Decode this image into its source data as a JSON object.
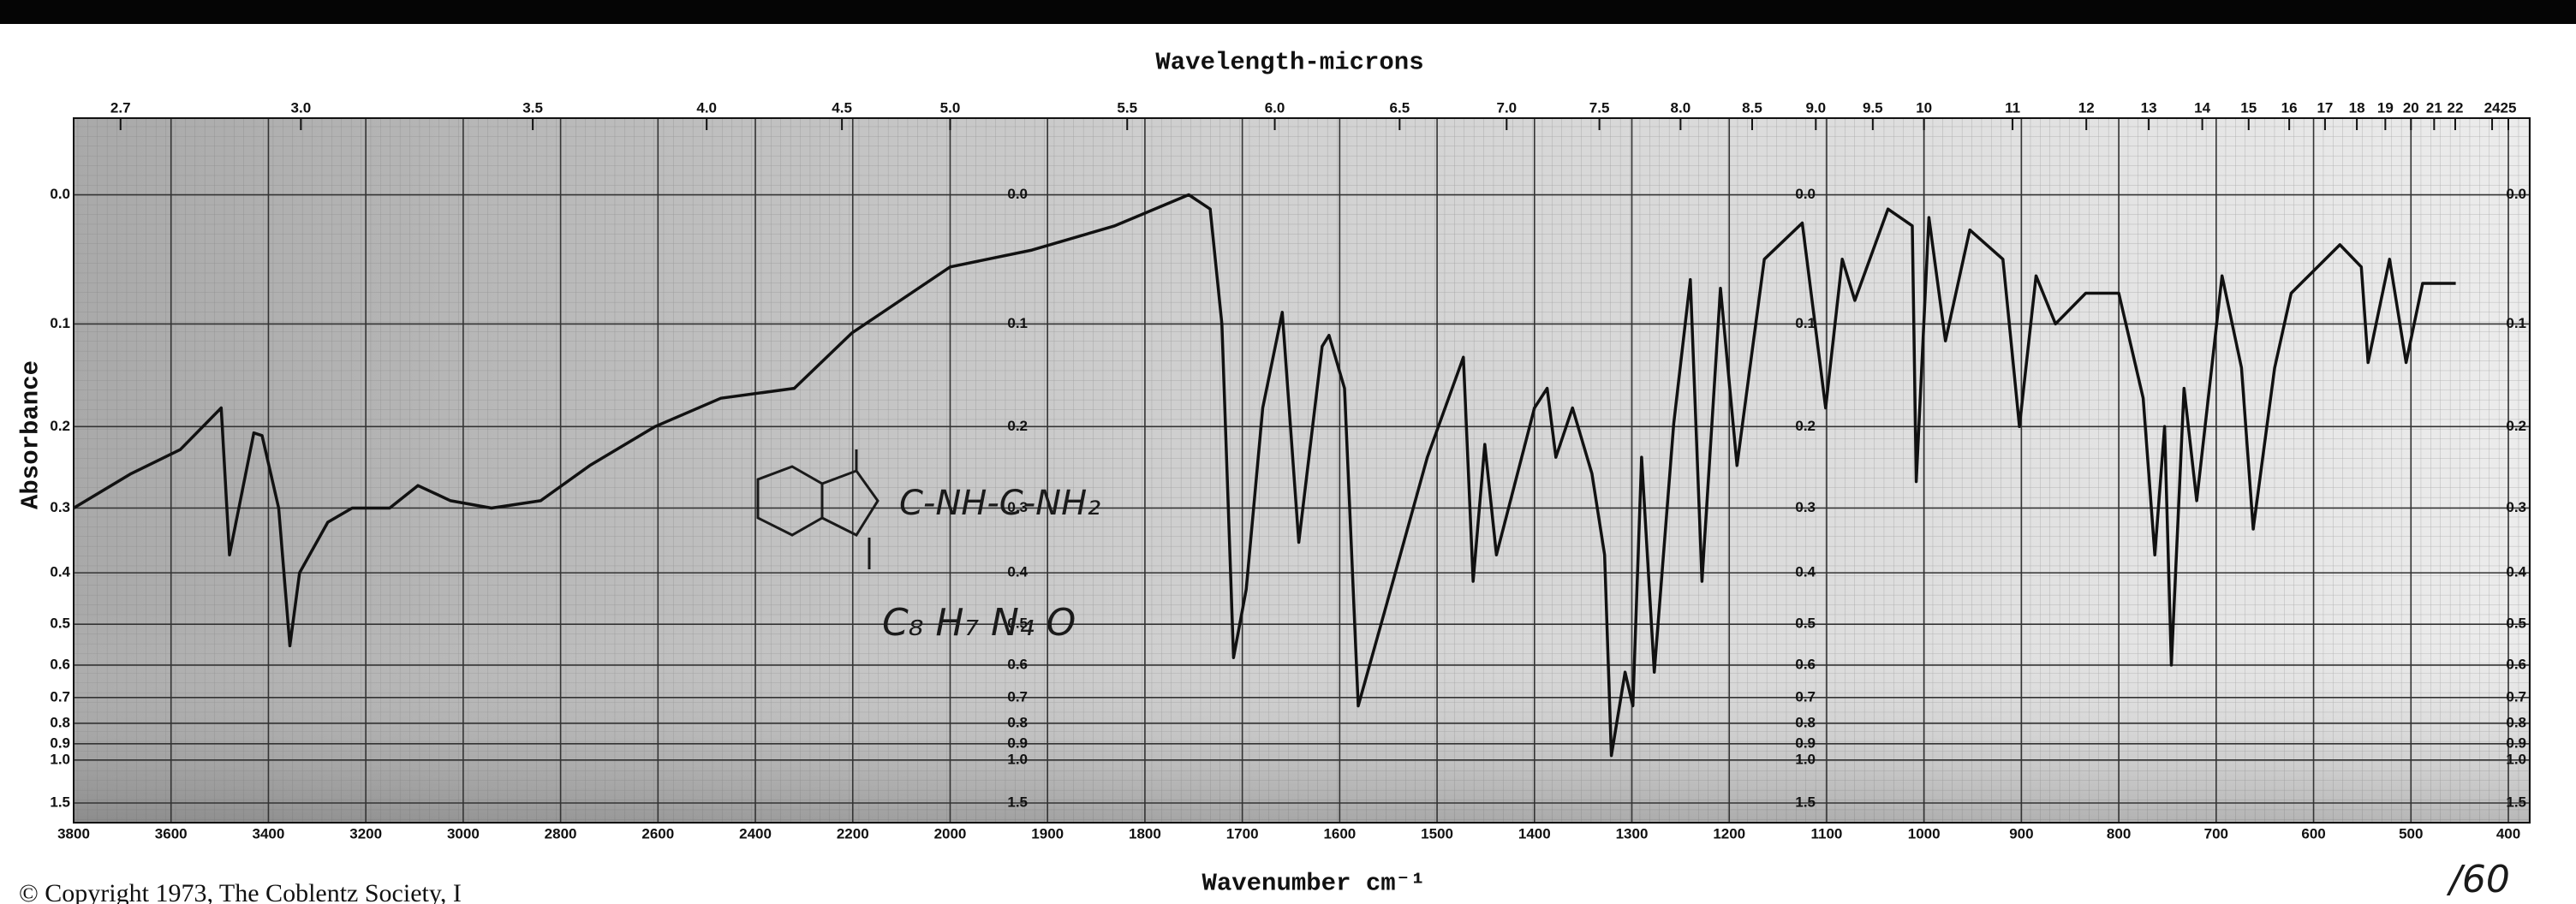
{
  "chart_data": {
    "type": "line",
    "title": "Wavelength-microns",
    "xlabel": "Wavenumber cm⁻¹",
    "ylabel": "Absorbance",
    "copyright": "© Copyright 1973, The Coblentz Society, I",
    "annotations": [
      "C-NH-C-NH₂",
      "C₈ H₇ N₄ O",
      "/60"
    ],
    "color": "#111111",
    "x": [
      3800,
      3682,
      3581,
      3497,
      3480,
      3430,
      3413,
      3379,
      3356,
      3336,
      3278,
      3228,
      3151,
      3093,
      3026,
      2942,
      2841,
      2740,
      2606,
      2471,
      2320,
      2202,
      2000,
      1916,
      1831,
      1755,
      1733,
      1721,
      1709,
      1696,
      1679,
      1659,
      1642,
      1618,
      1611,
      1595,
      1581,
      1552,
      1510,
      1473,
      1463,
      1451,
      1439,
      1400,
      1387,
      1378,
      1361,
      1341,
      1328,
      1321,
      1307,
      1299,
      1290,
      1277,
      1257,
      1240,
      1228,
      1209,
      1192,
      1164,
      1125,
      1101,
      1084,
      1071,
      1037,
      1012,
      1008,
      995,
      978,
      953,
      919,
      902,
      885,
      865,
      834,
      800,
      775,
      763,
      753,
      746,
      733,
      720,
      694,
      674,
      662,
      640,
      623,
      573,
      551,
      544,
      522,
      505,
      488,
      454
    ],
    "values": [
      0.3,
      0.255,
      0.226,
      0.18,
      0.37,
      0.207,
      0.21,
      0.3,
      0.55,
      0.4,
      0.32,
      0.3,
      0.3,
      0.27,
      0.29,
      0.3,
      0.29,
      0.245,
      0.2,
      0.17,
      0.16,
      0.108,
      0.053,
      0.04,
      0.022,
      0.0,
      0.01,
      0.1,
      0.58,
      0.43,
      0.18,
      0.09,
      0.35,
      0.12,
      0.11,
      0.16,
      0.73,
      0.46,
      0.235,
      0.13,
      0.415,
      0.22,
      0.37,
      0.18,
      0.16,
      0.235,
      0.18,
      0.255,
      0.37,
      0.97,
      0.62,
      0.73,
      0.235,
      0.62,
      0.197,
      0.063,
      0.415,
      0.07,
      0.245,
      0.047,
      0.02,
      0.18,
      0.047,
      0.08,
      0.01,
      0.022,
      0.265,
      0.016,
      0.115,
      0.025,
      0.047,
      0.2,
      0.06,
      0.1,
      0.074,
      0.074,
      0.17,
      0.37,
      0.2,
      0.6,
      0.16,
      0.29,
      0.06,
      0.14,
      0.33,
      0.14,
      0.074,
      0.036,
      0.053,
      0.135,
      0.047,
      0.135,
      0.066,
      0.066
    ],
    "xlim": [
      3800,
      400
    ],
    "xticks": [
      3800,
      3600,
      3400,
      3200,
      3000,
      2800,
      2600,
      2400,
      2200,
      2000,
      1900,
      1800,
      1700,
      1600,
      1500,
      1400,
      1300,
      1200,
      1100,
      1000,
      900,
      800,
      700,
      600,
      500,
      400
    ],
    "x2ticks": [
      2.7,
      {
        "value": 3,
        "label": "3.0"
      },
      3.5,
      {
        "value": 4,
        "label": "4.0"
      },
      4.5,
      {
        "value": 5,
        "label": "5.0"
      },
      5.5,
      {
        "value": 6,
        "label": "6.0"
      },
      6.5,
      {
        "value": 7,
        "label": "7.0"
      },
      7.5,
      {
        "value": 8,
        "label": "8.0"
      },
      8.5,
      {
        "value": 9,
        "label": "9.0"
      },
      9.5,
      10,
      11,
      12,
      13,
      14,
      15,
      16,
      17,
      18,
      19,
      20,
      21,
      22,
      24,
      25
    ],
    "ylim": [
      -0.05,
      1.5
    ],
    "yticks": [
      {
        "value": 0,
        "label": "0.0"
      },
      0.1,
      0.2,
      0.3,
      0.4,
      0.5,
      0.6,
      0.7,
      0.8,
      0.9,
      {
        "value": 1,
        "label": "1.0"
      },
      1.5
    ],
    "yscale": "absorbance",
    "grid": true
  }
}
